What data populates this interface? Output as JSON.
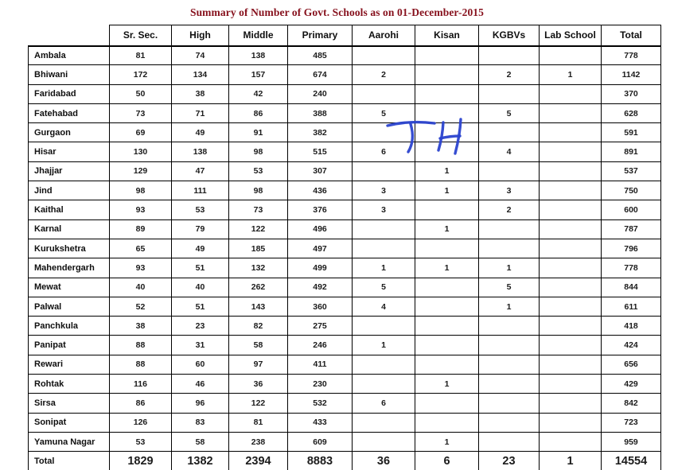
{
  "title": "Summary of Number of Govt. Schools as on 01-December-2015",
  "colors": {
    "title_text": "#86101c",
    "table_border": "#000000",
    "cell_text": "#1c1c1c",
    "annotation_ink": "#2b43cf"
  },
  "annotation": {
    "text": "TH",
    "description": "handwritten blue ink over Gurgaon/Hisar rows in Aarohi-Kisan columns"
  },
  "table": {
    "columns": [
      "Sr. Sec.",
      "High",
      "Middle",
      "Primary",
      "Aarohi",
      "Kisan",
      "KGBVs",
      "Lab School",
      "Total"
    ],
    "rows": [
      {
        "district": "Ambala",
        "values": [
          "81",
          "74",
          "138",
          "485",
          "",
          "",
          "",
          "",
          "778"
        ]
      },
      {
        "district": "Bhiwani",
        "values": [
          "172",
          "134",
          "157",
          "674",
          "2",
          "",
          "2",
          "1",
          "1142"
        ]
      },
      {
        "district": "Faridabad",
        "values": [
          "50",
          "38",
          "42",
          "240",
          "",
          "",
          "",
          "",
          "370"
        ]
      },
      {
        "district": "Fatehabad",
        "values": [
          "73",
          "71",
          "86",
          "388",
          "5",
          "",
          "5",
          "",
          "628"
        ]
      },
      {
        "district": "Gurgaon",
        "values": [
          "69",
          "49",
          "91",
          "382",
          "",
          "",
          "",
          "",
          "591"
        ]
      },
      {
        "district": "Hisar",
        "values": [
          "130",
          "138",
          "98",
          "515",
          "6",
          "",
          "4",
          "",
          "891"
        ]
      },
      {
        "district": "Jhajjar",
        "values": [
          "129",
          "47",
          "53",
          "307",
          "",
          "1",
          "",
          "",
          "537"
        ]
      },
      {
        "district": "Jind",
        "values": [
          "98",
          "111",
          "98",
          "436",
          "3",
          "1",
          "3",
          "",
          "750"
        ]
      },
      {
        "district": "Kaithal",
        "values": [
          "93",
          "53",
          "73",
          "376",
          "3",
          "",
          "2",
          "",
          "600"
        ]
      },
      {
        "district": "Karnal",
        "values": [
          "89",
          "79",
          "122",
          "496",
          "",
          "1",
          "",
          "",
          "787"
        ]
      },
      {
        "district": "Kurukshetra",
        "values": [
          "65",
          "49",
          "185",
          "497",
          "",
          "",
          "",
          "",
          "796"
        ]
      },
      {
        "district": "Mahendergarh",
        "values": [
          "93",
          "51",
          "132",
          "499",
          "1",
          "1",
          "1",
          "",
          "778"
        ]
      },
      {
        "district": "Mewat",
        "values": [
          "40",
          "40",
          "262",
          "492",
          "5",
          "",
          "5",
          "",
          "844"
        ]
      },
      {
        "district": "Palwal",
        "values": [
          "52",
          "51",
          "143",
          "360",
          "4",
          "",
          "1",
          "",
          "611"
        ]
      },
      {
        "district": "Panchkula",
        "values": [
          "38",
          "23",
          "82",
          "275",
          "",
          "",
          "",
          "",
          "418"
        ]
      },
      {
        "district": "Panipat",
        "values": [
          "88",
          "31",
          "58",
          "246",
          "1",
          "",
          "",
          "",
          "424"
        ]
      },
      {
        "district": "Rewari",
        "values": [
          "88",
          "60",
          "97",
          "411",
          "",
          "",
          "",
          "",
          "656"
        ]
      },
      {
        "district": "Rohtak",
        "values": [
          "116",
          "46",
          "36",
          "230",
          "",
          "1",
          "",
          "",
          "429"
        ]
      },
      {
        "district": "Sirsa",
        "values": [
          "86",
          "96",
          "122",
          "532",
          "6",
          "",
          "",
          "",
          "842"
        ]
      },
      {
        "district": "Sonipat",
        "values": [
          "126",
          "83",
          "81",
          "433",
          "",
          "",
          "",
          "",
          "723"
        ]
      },
      {
        "district": "Yamuna Nagar",
        "values": [
          "53",
          "58",
          "238",
          "609",
          "",
          "1",
          "",
          "",
          "959"
        ]
      }
    ],
    "total_row": {
      "district": "Total",
      "values": [
        "1829",
        "1382",
        "2394",
        "8883",
        "36",
        "6",
        "23",
        "1",
        "14554"
      ]
    }
  }
}
